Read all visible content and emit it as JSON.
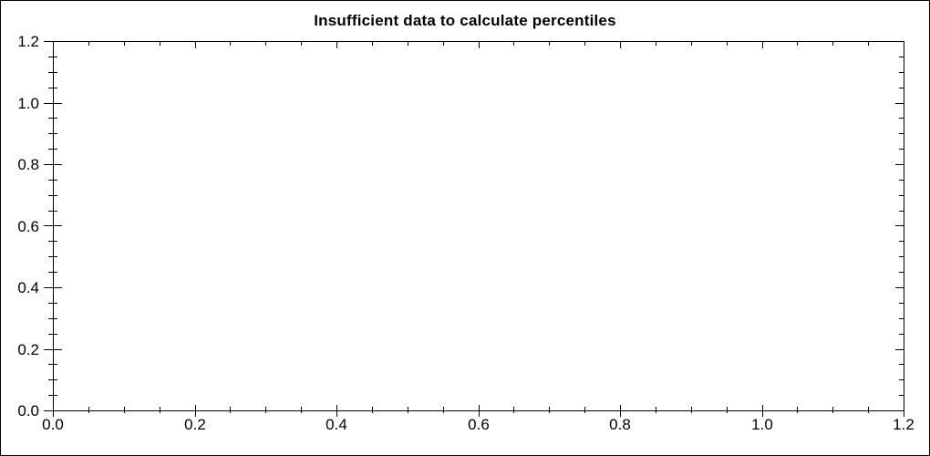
{
  "chart_data": {
    "type": "scatter",
    "title": "Insufficient data to calculate percentiles",
    "series": [],
    "xlabel": "",
    "ylabel": "",
    "xlim": [
      0,
      1.2
    ],
    "ylim": [
      0,
      1.2
    ],
    "x_major_ticks": [
      0,
      0.2,
      0.4,
      0.6,
      0.8,
      1.0,
      1.2
    ],
    "y_major_ticks": [
      0,
      0.2,
      0.4,
      0.6,
      0.8,
      1.0,
      1.2
    ],
    "x_tick_labels": [
      "0.0",
      "0.2",
      "0.4",
      "0.6",
      "0.8",
      "1.0",
      "1.2"
    ],
    "y_tick_labels": [
      "0.0",
      "0.2",
      "0.4",
      "0.6",
      "0.8",
      "1.0",
      "1.2"
    ],
    "minor_tick_step": 0.05,
    "grid": false,
    "legend": false,
    "frame": true,
    "colors": {
      "axis": "#000000",
      "text": "#000000",
      "background": "#ffffff"
    }
  }
}
